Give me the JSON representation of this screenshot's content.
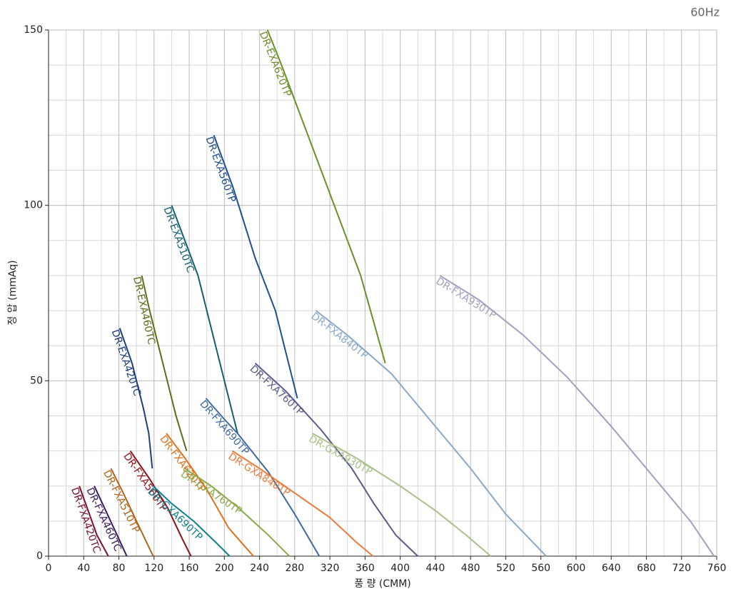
{
  "chart_data": {
    "type": "line",
    "corner_label": "60Hz",
    "xlabel": "풍 량 (CMM)",
    "ylabel": "정 압 (mmAq)",
    "xlim": [
      0,
      760
    ],
    "ylim": [
      0,
      150
    ],
    "xticks": [
      0,
      40,
      80,
      120,
      160,
      200,
      240,
      280,
      320,
      360,
      400,
      440,
      480,
      520,
      560,
      600,
      640,
      680,
      720,
      760
    ],
    "yticks": [
      0,
      50,
      100,
      150
    ],
    "grid": true,
    "series": [
      {
        "name": "DR-FXA420TC",
        "color": "#7a1030",
        "x": [
          35,
          45,
          55,
          68
        ],
        "values": [
          20,
          13,
          6,
          0
        ]
      },
      {
        "name": "DR-FXA460TC",
        "color": "#3a1a5a",
        "x": [
          52,
          65,
          78,
          89
        ],
        "values": [
          20,
          13,
          6,
          0
        ]
      },
      {
        "name": "DR-FXA510TP",
        "color": "#b0641a",
        "x": [
          71,
          85,
          100,
          119
        ],
        "values": [
          25,
          18,
          10,
          0
        ]
      },
      {
        "name": "DR-FXA560TP",
        "color": "#8a1418",
        "x": [
          93,
          115,
          135,
          152,
          162
        ],
        "values": [
          30,
          22,
          14,
          5,
          0
        ]
      },
      {
        "name": "DR-EXA420TC",
        "color": "#1f3f7a",
        "x": [
          81,
          95,
          108,
          114,
          118
        ],
        "values": [
          65,
          55,
          42,
          35,
          25
        ]
      },
      {
        "name": "DR-EXA460TC",
        "color": "#5a6e1a",
        "x": [
          106,
          115,
          130,
          145,
          157
        ],
        "values": [
          80,
          70,
          55,
          40,
          30
        ]
      },
      {
        "name": "DR-EXA510TC",
        "color": "#13606e",
        "x": [
          140,
          158,
          170,
          190,
          215
        ],
        "values": [
          100,
          88,
          80,
          60,
          35
        ]
      },
      {
        "name": "DR-EXA560TP",
        "color": "#1f4f8f",
        "x": [
          188,
          210,
          235,
          258,
          283
        ],
        "values": [
          120,
          105,
          85,
          70,
          45
        ]
      },
      {
        "name": "DR-EXA620TP",
        "color": "#6a8f2a",
        "x": [
          249,
          265,
          295,
          325,
          355,
          383
        ],
        "values": [
          150,
          140,
          120,
          100,
          80,
          55
        ]
      },
      {
        "name": "DR-GXA690TP",
        "color": "#12808a",
        "x": [
          119,
          140,
          165,
          190,
          206
        ],
        "values": [
          20,
          15,
          10,
          4,
          0
        ]
      },
      {
        "name": "DR-FXA620TP",
        "color": "#e0701a",
        "x": [
          134,
          155,
          180,
          205,
          233
        ],
        "values": [
          35,
          28,
          19,
          8,
          0
        ]
      },
      {
        "name": "DR-GXA760TP",
        "color": "#8aaa4a",
        "x": [
          155,
          185,
          215,
          250,
          274
        ],
        "values": [
          25,
          20,
          14,
          6,
          0
        ]
      },
      {
        "name": "DR-FXA690TP",
        "color": "#3f6a9a",
        "x": [
          179,
          200,
          215,
          250,
          280,
          308
        ],
        "values": [
          45,
          39,
          35,
          24,
          12,
          0
        ]
      },
      {
        "name": "DR-GXA840TP",
        "color": "#ee7a3a",
        "x": [
          209,
          240,
          280,
          320,
          350,
          369
        ],
        "values": [
          30,
          25,
          18,
          11,
          4,
          0
        ]
      },
      {
        "name": "DR-FXA760TP",
        "color": "#5a5a8a",
        "x": [
          235,
          270,
          310,
          345,
          370,
          395,
          420
        ],
        "values": [
          55,
          47,
          36,
          25,
          15,
          6,
          0
        ]
      },
      {
        "name": "DR-GXA930TP",
        "color": "#a8c08a",
        "x": [
          300,
          350,
          400,
          440,
          475,
          503
        ],
        "values": [
          35,
          28,
          20,
          13,
          6,
          0
        ]
      },
      {
        "name": "DR-FXA840TP",
        "color": "#8aa8c8",
        "x": [
          304,
          340,
          390,
          440,
          480,
          520,
          566
        ],
        "values": [
          70,
          63,
          52,
          37,
          25,
          12,
          0
        ]
      },
      {
        "name": "DR-FXA930TP",
        "color": "#a0a0c0",
        "x": [
          445,
          490,
          540,
          590,
          640,
          690,
          730,
          757
        ],
        "values": [
          80,
          73,
          63,
          51,
          37,
          22,
          10,
          0
        ]
      }
    ]
  }
}
